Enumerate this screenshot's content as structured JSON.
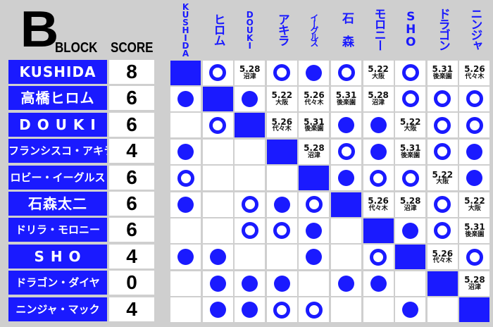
{
  "header": {
    "block_letter": "B",
    "block_label": "BLOCK",
    "score_label": "SCORE"
  },
  "columns": [
    "KUSHIDA",
    "ヒロム",
    "DOUKI",
    "アキラ",
    "イーグルス",
    "石 森",
    "モロニー",
    "SHO",
    "ドラゴン",
    "ニンジャ"
  ],
  "colors": {
    "accent": "#1a1aff",
    "background": "#cfcfcf"
  },
  "legend_symbols": {
    "W": "open-circle (win)",
    "L": "filled-circle (loss)",
    "D": "diagonal self"
  },
  "rows": [
    {
      "name": "KUSHIDA",
      "score": "8",
      "results": [
        "D",
        "W",
        "5.28|沼津",
        "W",
        "L",
        "W",
        "5.22|大阪",
        "W",
        "5.31|後楽園",
        "5.26|代々木"
      ]
    },
    {
      "name": "高橋ヒロム",
      "score": "6",
      "results": [
        "L",
        "D",
        "L",
        "5.22|大阪",
        "5.26|代々木",
        "5.31|後楽園",
        "5.28|沼津",
        "W",
        "W",
        "W"
      ]
    },
    {
      "name": "D O U K I",
      "score": "6",
      "results": [
        "",
        "W",
        "D",
        "5.26|代々木",
        "5.31|後楽園",
        "L",
        "L",
        "5.22|大阪",
        "W",
        "W"
      ]
    },
    {
      "name": "フランシスコ・アキラ",
      "score": "4",
      "results": [
        "L",
        "",
        "",
        "D",
        "5.28|沼津",
        "W",
        "L",
        "5.31|後楽園",
        "W",
        "L"
      ]
    },
    {
      "name": "ロビー・イーグルス",
      "score": "6",
      "results": [
        "W",
        "",
        "",
        "",
        "D",
        "L",
        "W",
        "W",
        "5.22|大阪",
        "L"
      ]
    },
    {
      "name": "石森太二",
      "score": "6",
      "results": [
        "L",
        "",
        "W",
        "L",
        "W",
        "D",
        "5.26|代々木",
        "5.28|沼津",
        "W",
        "5.22|大阪"
      ]
    },
    {
      "name": "ドリラ・モロニー",
      "score": "6",
      "results": [
        "",
        "",
        "W",
        "W",
        "L",
        "",
        "D",
        "L",
        "W",
        "5.31|後楽園"
      ]
    },
    {
      "name": "S H O",
      "score": "4",
      "results": [
        "L",
        "L",
        "",
        "",
        "L",
        "",
        "W",
        "D",
        "5.26|代々木",
        "W"
      ]
    },
    {
      "name": "ドラゴン・ダイヤ",
      "score": "0",
      "results": [
        "",
        "L",
        "L",
        "L",
        "",
        "L",
        "L",
        "",
        "D",
        "5.28|沼津"
      ]
    },
    {
      "name": "ニンジャ・マック",
      "score": "4",
      "results": [
        "",
        "L",
        "L",
        "W",
        "W",
        "",
        "",
        "L",
        "",
        "D"
      ]
    }
  ]
}
